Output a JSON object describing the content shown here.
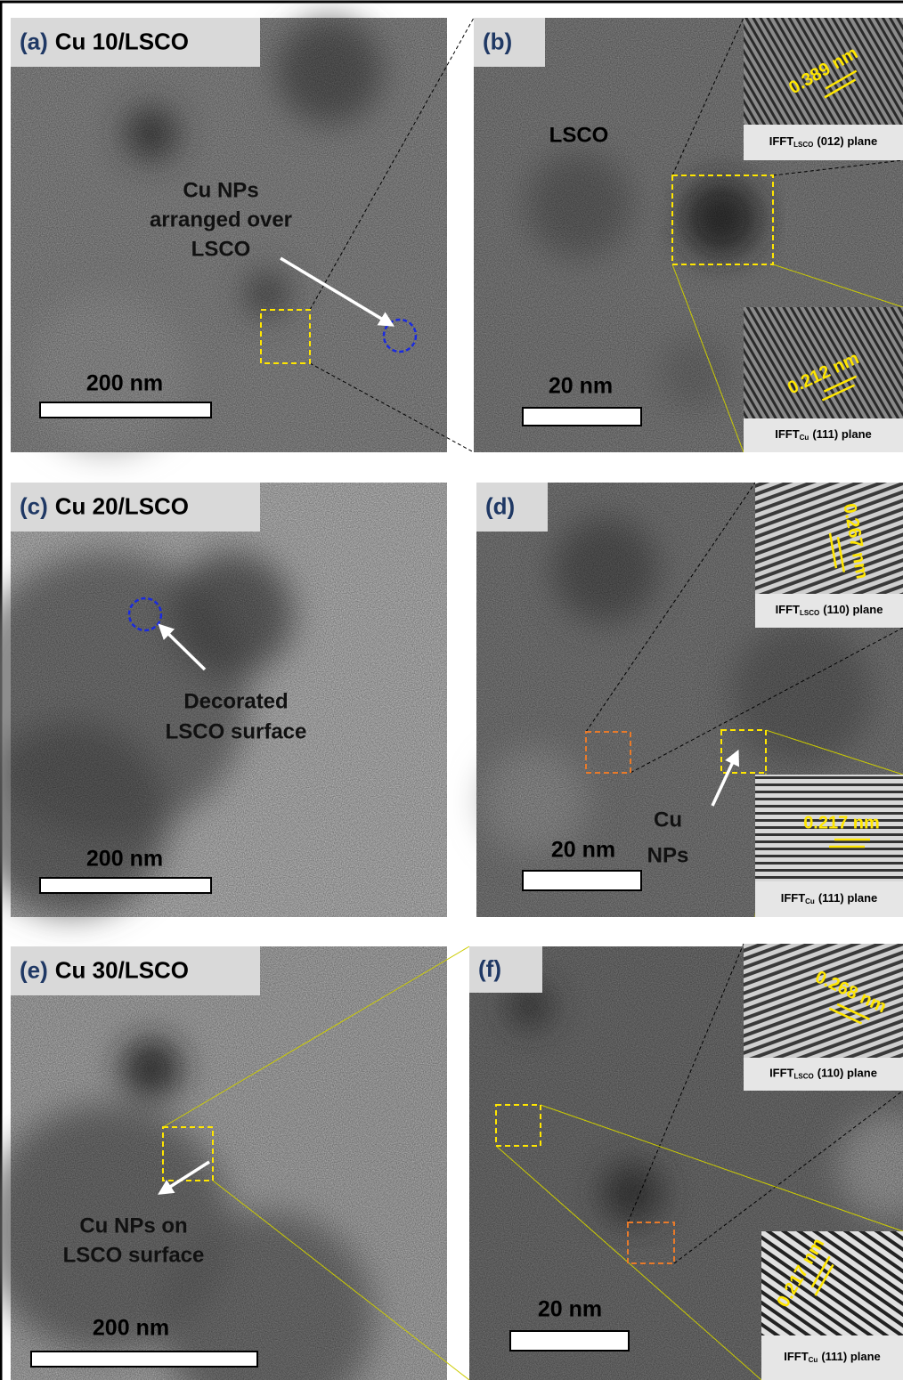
{
  "panels": [
    {
      "label": "(a)",
      "title": "Cu 10/LSCO",
      "scale_bar": "200 nm",
      "annotation": [
        "Cu NPs",
        "arranged over",
        "LSCO"
      ]
    },
    {
      "label": "(b)",
      "region_label": "LSCO",
      "scale_bar": "20 nm",
      "insets": [
        {
          "spacing": "0.389 nm",
          "prefix": "IFFT",
          "subscript": "LSCO",
          "plane": "(012) plane"
        },
        {
          "spacing": "0.212 nm",
          "prefix": "IFFT",
          "subscript": "Cu",
          "plane": "(111) plane"
        }
      ]
    },
    {
      "label": "(c)",
      "title": "Cu 20/LSCO",
      "scale_bar": "200 nm",
      "annotation": [
        "Decorated",
        "LSCO surface"
      ]
    },
    {
      "label": "(d)",
      "scale_bar": "20 nm",
      "annotation": [
        "Cu",
        "NPs"
      ],
      "insets": [
        {
          "spacing": "0.267 nm",
          "prefix": "IFFT",
          "subscript": "LSCO",
          "plane": "(110) plane"
        },
        {
          "spacing": "0.217 nm",
          "prefix": "IFFT",
          "subscript": "Cu",
          "plane": "(111) plane"
        }
      ]
    },
    {
      "label": "(e)",
      "title": "Cu 30/LSCO",
      "scale_bar": "200 nm",
      "annotation": [
        "Cu NPs on",
        "LSCO surface"
      ]
    },
    {
      "label": "(f)",
      "scale_bar": "20 nm",
      "insets": [
        {
          "spacing": "0.268 nm",
          "prefix": "IFFT",
          "subscript": "LSCO",
          "plane": "(110) plane"
        },
        {
          "spacing": "0.217 nm",
          "prefix": "IFFT",
          "subscript": "Cu",
          "plane": "(111) plane"
        }
      ]
    }
  ]
}
